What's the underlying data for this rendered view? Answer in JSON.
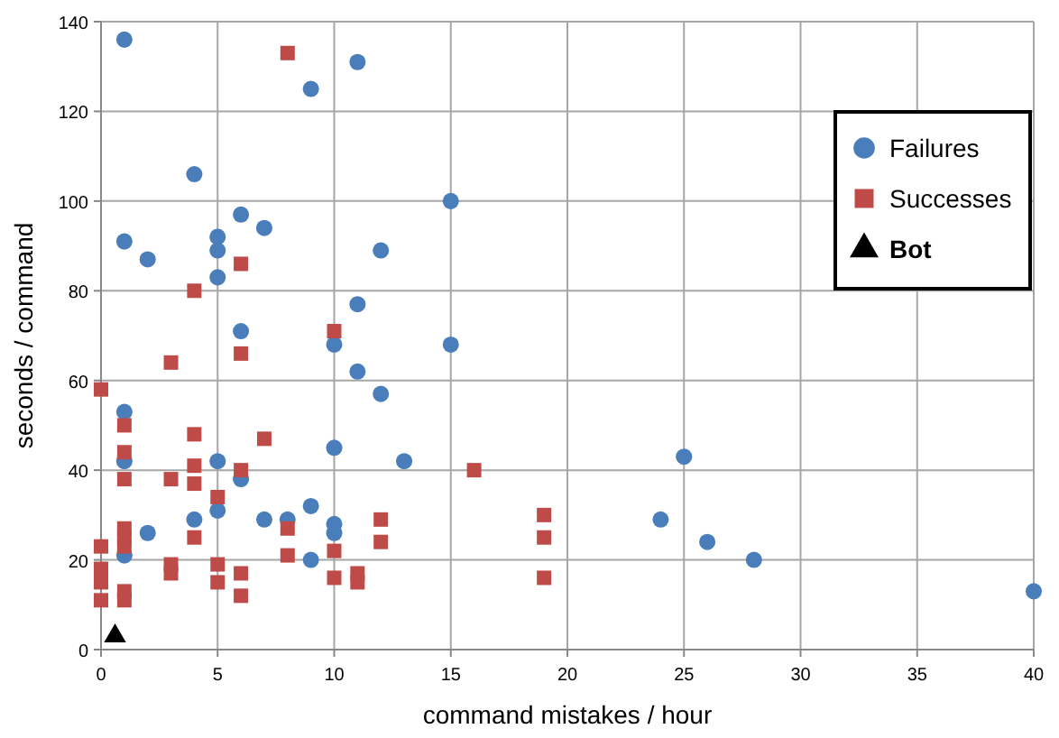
{
  "chart_data": {
    "type": "scatter",
    "xlabel": "command mistakes / hour",
    "ylabel": "seconds / command",
    "xlim": [
      0,
      40
    ],
    "xticks": [
      0,
      5,
      10,
      15,
      20,
      25,
      30,
      35,
      40
    ],
    "ylim": [
      0,
      140
    ],
    "yticks": [
      0,
      20,
      40,
      60,
      80,
      100,
      120,
      140
    ],
    "grid": true,
    "legend": "top right",
    "series": [
      {
        "name": "Failures",
        "color": "#4a7ebb",
        "marker": "circle",
        "x": [
          1,
          9,
          11,
          4,
          6,
          7,
          1,
          2,
          5,
          5,
          12,
          5,
          11,
          6,
          10,
          15,
          15,
          11,
          12,
          1,
          1,
          10,
          13,
          5,
          6,
          25,
          24,
          26,
          28,
          40,
          4,
          2,
          5,
          7,
          8,
          9,
          10,
          10,
          9,
          1
        ],
        "values": [
          136,
          125,
          131,
          106,
          97,
          94,
          91,
          87,
          92,
          89,
          89,
          83,
          77,
          71,
          68,
          100,
          68,
          62,
          57,
          53,
          42,
          45,
          42,
          42,
          38,
          43,
          29,
          24,
          20,
          13,
          29,
          26,
          31,
          29,
          29,
          32,
          28,
          26,
          20,
          21
        ]
      },
      {
        "name": "Successes",
        "color": "#be4b48",
        "marker": "square",
        "x": [
          8,
          6,
          4,
          10,
          6,
          3,
          0,
          1,
          1,
          1,
          7,
          4,
          4,
          4,
          6,
          3,
          5,
          1,
          1,
          1,
          0,
          0,
          0,
          0,
          1,
          1,
          3,
          3,
          4,
          5,
          5,
          6,
          6,
          8,
          8,
          10,
          10,
          11,
          11,
          12,
          12,
          16,
          19,
          19,
          19
        ],
        "values": [
          133,
          86,
          80,
          71,
          66,
          64,
          58,
          50,
          44,
          38,
          47,
          48,
          41,
          37,
          40,
          38,
          34,
          27,
          25,
          23,
          23,
          18,
          15,
          11,
          13,
          11,
          19,
          17,
          25,
          19,
          15,
          17,
          12,
          27,
          21,
          22,
          16,
          17,
          15,
          29,
          24,
          40,
          30,
          25,
          16
        ]
      },
      {
        "name": "Bot",
        "color": "#000000",
        "marker": "triangle",
        "x": [
          0.6
        ],
        "values": [
          3
        ]
      }
    ]
  }
}
